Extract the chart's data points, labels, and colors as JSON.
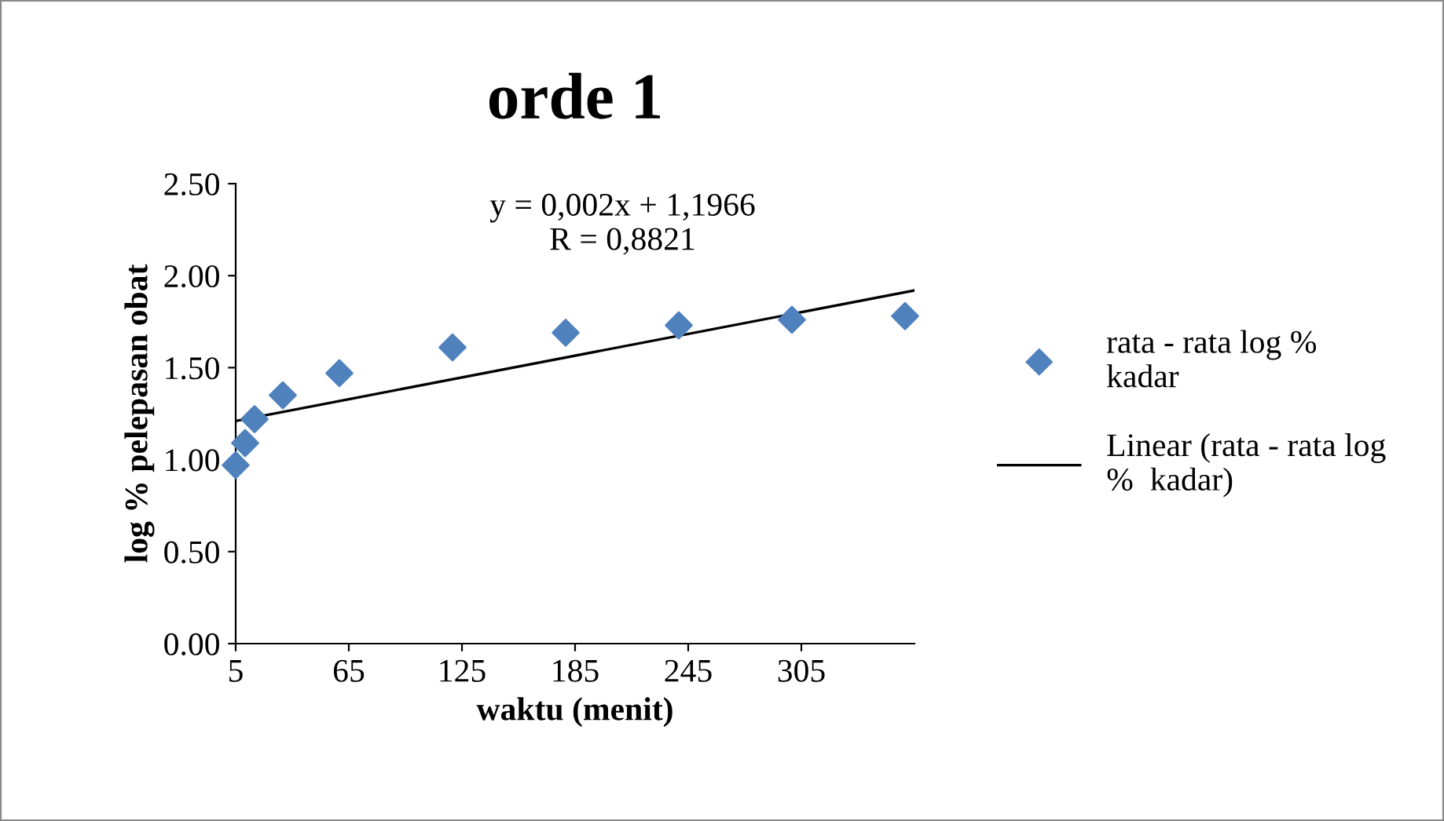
{
  "chart_data": {
    "type": "scatter",
    "title": "orde 1",
    "xlabel": "waktu (menit)",
    "ylabel": "log % pelepasan obat",
    "x": [
      5,
      10,
      15,
      30,
      60,
      120,
      180,
      240,
      300,
      360
    ],
    "series": [
      {
        "name": "rata - rata log %\nkadar",
        "color": "#4f81bd",
        "marker": "diamond",
        "values": [
          0.97,
          1.09,
          1.22,
          1.35,
          1.47,
          1.61,
          1.69,
          1.73,
          1.76,
          1.78
        ]
      },
      {
        "name": "Linear (rata - rata log\n%  kadar)",
        "type": "line",
        "color": "#000000",
        "marker": "none",
        "line_style": "solid",
        "x": [
          5,
          365
        ],
        "values": [
          1.21,
          1.92
        ]
      }
    ],
    "annotations": [
      "y = 0,002x + 1,1966\nR = 0,8821"
    ],
    "xlim": [
      5,
      365
    ],
    "xticks": [
      5,
      65,
      125,
      185,
      245,
      305
    ],
    "ylim": [
      0,
      2.5
    ],
    "yticks": [
      {
        "value": 0,
        "label": "0.00"
      },
      {
        "value": 0.5,
        "label": "0.50"
      },
      {
        "value": 1,
        "label": "1.00"
      },
      {
        "value": 1.5,
        "label": "1.50"
      },
      {
        "value": 2,
        "label": "2.00"
      },
      {
        "value": 2.5,
        "label": "2.50"
      }
    ],
    "grid": false,
    "legend": "right"
  }
}
